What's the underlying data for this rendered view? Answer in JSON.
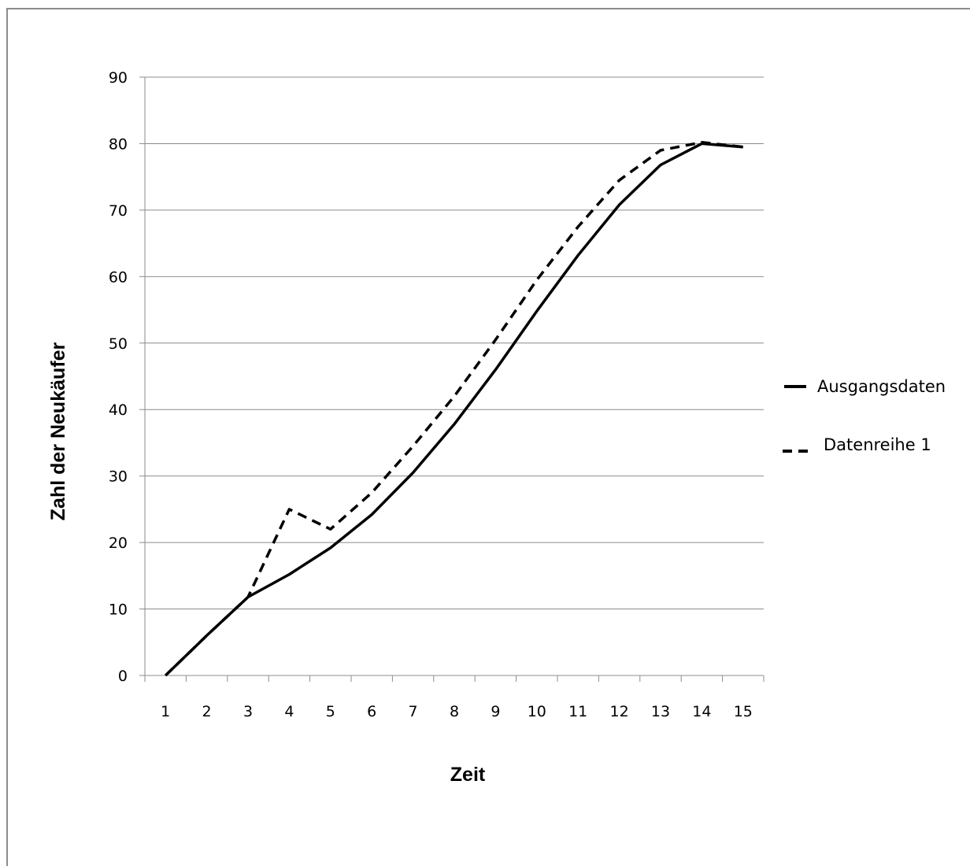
{
  "chart_data": {
    "type": "line",
    "x": [
      1,
      2,
      3,
      4,
      5,
      6,
      7,
      8,
      9,
      10,
      11,
      12,
      13,
      14,
      15
    ],
    "series": [
      {
        "name": "Ausgangsdaten",
        "style": "solid",
        "values": [
          0,
          6,
          11.8,
          15.2,
          19.2,
          24.2,
          30.5,
          37.8,
          46,
          54.8,
          63.2,
          70.8,
          76.8,
          80,
          79.5
        ]
      },
      {
        "name": "Datenreihe 1",
        "style": "dashed",
        "values": [
          0,
          6,
          11.8,
          25,
          22,
          27.5,
          34.5,
          42,
          50.5,
          59.5,
          67.5,
          74.5,
          79,
          80.2,
          79.5
        ]
      }
    ],
    "xlabel": "Zeit",
    "ylabel": "Zahl der Neukäufer",
    "xtick_labels": [
      "1",
      "2",
      "3",
      "4",
      "5",
      "6",
      "7",
      "8",
      "9",
      "10",
      "11",
      "12",
      "13",
      "14",
      "15"
    ],
    "ylim": [
      0,
      90
    ],
    "yticks": [
      0,
      10,
      20,
      30,
      40,
      50,
      60,
      70,
      80,
      90
    ],
    "grid": "horizontal",
    "legend_position": "right",
    "colors": {
      "line": "#000000",
      "grid": "#8c8c8c",
      "frame": "#8c8c8c"
    }
  }
}
